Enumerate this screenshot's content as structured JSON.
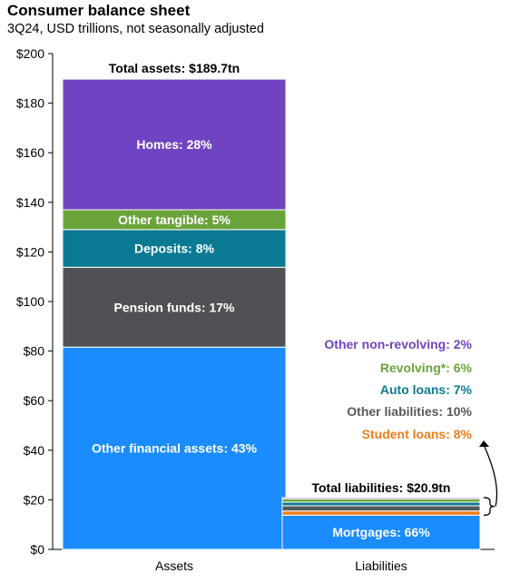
{
  "header": {
    "title": "Consumer balance sheet",
    "subtitle": "3Q24, USD trillions, not seasonally adjusted"
  },
  "chart_data": {
    "type": "bar",
    "stacked": true,
    "categories": [
      "Assets",
      "Liabilities"
    ],
    "ylim": [
      0,
      200
    ],
    "yticks": [
      0,
      20,
      40,
      60,
      80,
      100,
      120,
      140,
      160,
      180,
      200
    ],
    "ytick_labels": [
      "$0",
      "$20",
      "$40",
      "$60",
      "$80",
      "$100",
      "$120",
      "$140",
      "$160",
      "$180",
      "$200"
    ],
    "grid": false,
    "totals": [
      {
        "category": "Assets",
        "value": 189.7,
        "label": "Total assets: $189.7tn"
      },
      {
        "category": "Liabilities",
        "value": 20.9,
        "label": "Total liabilities: $20.9tn"
      }
    ],
    "segments": [
      {
        "category": "Assets",
        "name": "Other financial assets",
        "value": 81.6,
        "label": "Other financial assets: 43%",
        "color": "#1a8cff",
        "text_color": "#ffffff"
      },
      {
        "category": "Assets",
        "name": "Pension funds",
        "value": 32.2,
        "label": "Pension funds: 17%",
        "color": "#4f5155",
        "text_color": "#ffffff"
      },
      {
        "category": "Assets",
        "name": "Deposits",
        "value": 15.2,
        "label": "Deposits: 8%",
        "color": "#0a7a92",
        "text_color": "#ffffff"
      },
      {
        "category": "Assets",
        "name": "Other tangible",
        "value": 8.0,
        "label": "Other tangible: 5%",
        "color": "#6aa33a",
        "text_color": "#ffffff"
      },
      {
        "category": "Assets",
        "name": "Homes",
        "value": 52.7,
        "label": "Homes: 28%",
        "color": "#7043c2",
        "text_color": "#ffffff"
      },
      {
        "category": "Liabilities",
        "name": "Mortgages",
        "value": 13.8,
        "label": "Mortgages: 66%",
        "color": "#1a8cff",
        "text_color": "#ffffff"
      },
      {
        "category": "Liabilities",
        "name": "Student loans",
        "value": 1.7,
        "label": "Student loans: 8%",
        "color": "#f07d1a",
        "text_color": "#f07d1a"
      },
      {
        "category": "Liabilities",
        "name": "Other liabilities",
        "value": 2.1,
        "label": "Other liabilities: 10%",
        "color": "#55585c",
        "text_color": "#55585c"
      },
      {
        "category": "Liabilities",
        "name": "Auto loans",
        "value": 1.5,
        "label": "Auto loans: 7%",
        "color": "#0a7a92",
        "text_color": "#0a7a92"
      },
      {
        "category": "Liabilities",
        "name": "Revolving*",
        "value": 1.3,
        "label": "Revolving*: 6%",
        "color": "#6aa33a",
        "text_color": "#6aa33a"
      },
      {
        "category": "Liabilities",
        "name": "Other non-revolving",
        "value": 0.5,
        "label": "Other non-revolving: 2%",
        "color": "#7043c2",
        "text_color": "#7043c2"
      }
    ],
    "legend_labels": [
      "Other non-revolving: 2%",
      "Revolving*: 6%",
      "Auto loans: 7%",
      "Other liabilities: 10%",
      "Student loans: 8%"
    ]
  }
}
